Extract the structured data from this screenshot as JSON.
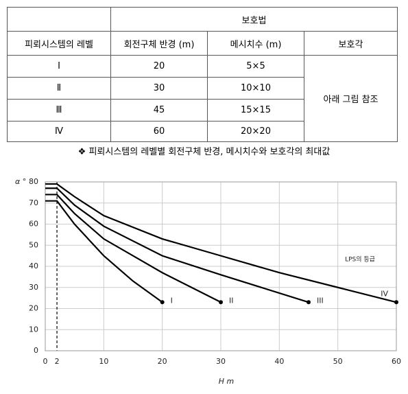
{
  "table": {
    "group_header": "보호법",
    "headers": [
      "피뢰시스템의 레벨",
      "회전구체 반경 (m)",
      "메시치수 (m)",
      "보호각"
    ],
    "rows": [
      [
        "Ⅰ",
        "20",
        "5×5"
      ],
      [
        "Ⅱ",
        "30",
        "10×10"
      ],
      [
        "Ⅲ",
        "45",
        "15×15"
      ],
      [
        "Ⅳ",
        "60",
        "20×20"
      ]
    ],
    "merged_cell": "아래 그림 참조"
  },
  "caption": "❖ 피뢰시스템의 레벨별 회전구체 반경, 메시치수와 보호각의 최대값",
  "chart_data": {
    "type": "line",
    "y_label": "α °",
    "x_label": "H  m",
    "annotation": "LPS의 등급",
    "xlim": [
      0,
      60
    ],
    "xticks": [
      0,
      2,
      10,
      20,
      30,
      40,
      50,
      60
    ],
    "ylim": [
      0,
      80
    ],
    "yticks": [
      0,
      10,
      20,
      30,
      40,
      50,
      60,
      70,
      80
    ],
    "grid": true,
    "series": [
      {
        "name": "I",
        "color": "#000000",
        "x": [
          0,
          2,
          5,
          10,
          15,
          20
        ],
        "values": [
          71,
          71,
          60,
          45,
          33,
          23
        ]
      },
      {
        "name": "II",
        "color": "#000000",
        "x": [
          0,
          2,
          5,
          10,
          20,
          30
        ],
        "values": [
          74,
          74,
          65,
          53,
          37,
          23
        ]
      },
      {
        "name": "III",
        "color": "#000000",
        "x": [
          0,
          2,
          5,
          10,
          20,
          30,
          45
        ],
        "values": [
          77,
          77,
          69,
          59,
          45,
          36,
          23
        ]
      },
      {
        "name": "IV",
        "color": "#000000",
        "x": [
          0,
          2,
          5,
          10,
          20,
          30,
          40,
          50,
          60
        ],
        "values": [
          79,
          79,
          73,
          64,
          53,
          45,
          37,
          30,
          23
        ]
      }
    ]
  }
}
